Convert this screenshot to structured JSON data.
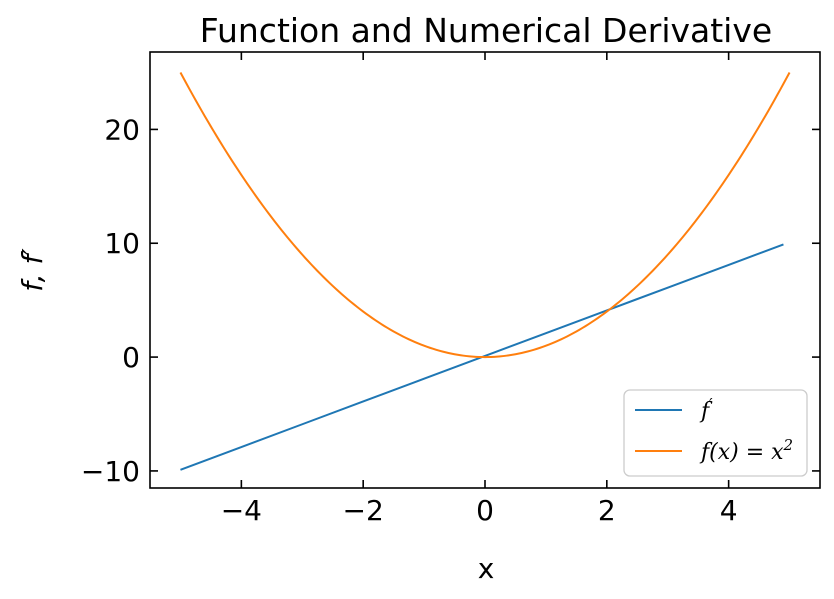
{
  "chart_data": {
    "type": "line",
    "title": "Function and Numerical Derivative",
    "xlabel": "x",
    "ylabel": "f, f′",
    "xlim": [
      -5.5,
      5.5
    ],
    "ylim": [
      -11.5,
      26.8
    ],
    "xticks": [
      -4,
      -2,
      0,
      2,
      4
    ],
    "yticks": [
      -10,
      0,
      10,
      20
    ],
    "xtick_labels": [
      "−4",
      "−2",
      "0",
      "2",
      "4"
    ],
    "ytick_labels": [
      "−10",
      "0",
      "10",
      "20"
    ],
    "legend_position": "bottom-right",
    "series": [
      {
        "name": "f′",
        "legend_main": "f",
        "legend_sup": "′",
        "color": "#1f77b4",
        "x": [
          -5.0,
          -4.0,
          -3.0,
          -2.0,
          -1.0,
          0.0,
          1.0,
          2.0,
          3.0,
          4.0,
          4.9
        ],
        "y": [
          -9.9,
          -7.9,
          -5.9,
          -3.9,
          -1.9,
          0.1,
          2.1,
          4.1,
          6.1,
          8.1,
          9.9
        ]
      },
      {
        "name": "f(x) = x²",
        "legend_main": "f(x) = x",
        "legend_sup": "2",
        "color": "#ff7f0e",
        "formula": "x^2",
        "x_range": [
          -5,
          5
        ]
      }
    ]
  }
}
